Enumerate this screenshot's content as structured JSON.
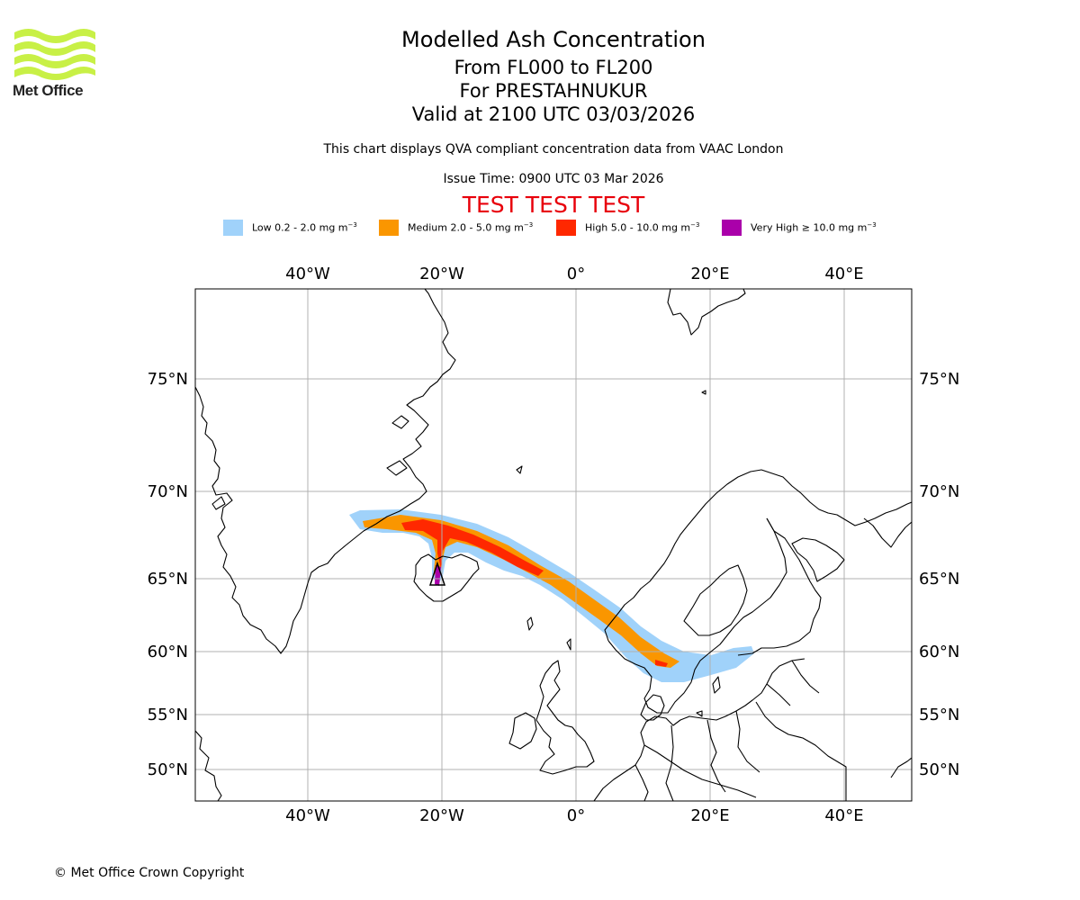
{
  "header": {
    "logo_text": "Met Office",
    "title": "Modelled Ash Concentration",
    "levels": "From FL000 to FL200",
    "volcano": "For PRESTAHNUKUR",
    "valid": "Valid at 2100 UTC 03/03/2026",
    "note": "This chart displays QVA compliant concentration data from VAAC London",
    "issue": "Issue Time: 0900 UTC 03 Mar 2026",
    "test_banner": "TEST TEST TEST"
  },
  "legend": [
    {
      "label": "Low 0.2 - 2.0 mg m",
      "unit_exp": "−3",
      "color": "#a0d2fa"
    },
    {
      "label": "Medium 2.0 - 5.0 mg m",
      "unit_exp": "−3",
      "color": "#fa9600"
    },
    {
      "label": "High 5.0 - 10.0 mg m",
      "unit_exp": "−3",
      "color": "#ff2800"
    },
    {
      "label": "Very High  ≥  10.0 mg m",
      "unit_exp": "−3",
      "color": "#aa00aa"
    }
  ],
  "map": {
    "lon_labels": [
      "40°W",
      "20°W",
      "0°",
      "20°E",
      "40°E"
    ],
    "lat_labels": [
      "75°N",
      "70°N",
      "65°N",
      "60°N",
      "55°N",
      "50°N"
    ],
    "gridlines": true
  },
  "footer": {
    "copyright": "© Met Office Crown Copyright"
  }
}
